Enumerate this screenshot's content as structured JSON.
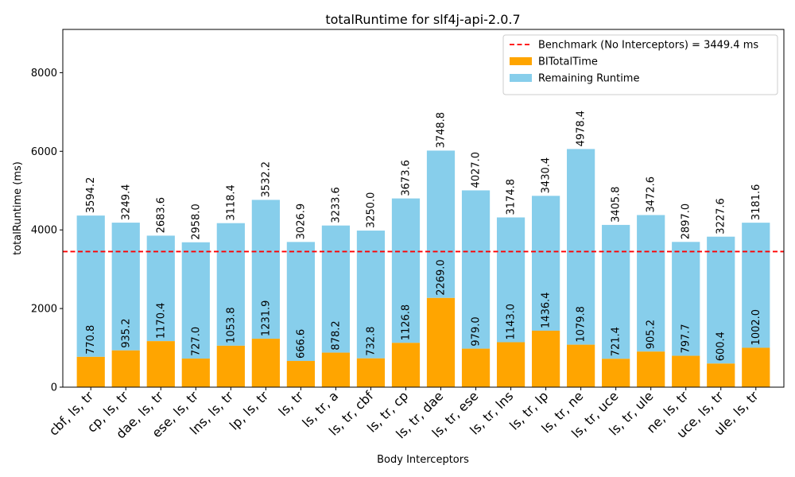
{
  "chart_data": {
    "type": "bar",
    "title": "totalRuntime for slf4j-api-2.0.7",
    "xlabel": "Body Interceptors",
    "ylabel": "totalRuntime (ms)",
    "ylim": [
      0,
      9100
    ],
    "yticks": [
      0,
      2000,
      4000,
      6000,
      8000
    ],
    "yticks_labels": [
      "0",
      "2000",
      "4000",
      "6000",
      "8000"
    ],
    "categories": [
      "cbf, ls, tr",
      "cp, ls, tr",
      "dae, ls, tr",
      "ese, ls, tr",
      "lns, ls, tr",
      "lp, ls, tr",
      "ls, tr",
      "ls, tr, a",
      "ls, tr, cbf",
      "ls, tr, cp",
      "ls, tr, dae",
      "ls, tr, ese",
      "ls, tr, lns",
      "ls, tr, lp",
      "ls, tr, ne",
      "ls, tr, uce",
      "ls, tr, ule",
      "ne, ls, tr",
      "uce, ls, tr",
      "ule, ls, tr"
    ],
    "series": [
      {
        "name": "BITotalTime",
        "color": "#ffa500",
        "values": [
          770.8,
          935.2,
          1170.4,
          727.0,
          1053.8,
          1231.9,
          666.6,
          878.2,
          732.8,
          1126.8,
          2269.0,
          979.0,
          1143.0,
          1436.4,
          1079.8,
          721.4,
          905.2,
          797.7,
          600.4,
          1002.0
        ],
        "value_labels": [
          "770.8",
          "935.2",
          "1170.4",
          "727.0",
          "1053.8",
          "1231.9",
          "666.6",
          "878.2",
          "732.8",
          "1126.8",
          "2269.0",
          "979.0",
          "1143.0",
          "1436.4",
          "1079.8",
          "721.4",
          "905.2",
          "797.7",
          "600.4",
          "1002.0"
        ]
      },
      {
        "name": "Remaining Runtime",
        "color": "#87ceeb",
        "values": [
          3594.2,
          3249.4,
          2683.6,
          2958.0,
          3118.4,
          3532.2,
          3026.9,
          3233.6,
          3250.0,
          3673.6,
          3748.8,
          4027.0,
          3174.8,
          3430.4,
          4978.4,
          3405.8,
          3472.6,
          2897.0,
          3227.6,
          3181.6
        ],
        "value_labels": [
          "3594.2",
          "3249.4",
          "2683.6",
          "2958.0",
          "3118.4",
          "3532.2",
          "3026.9",
          "3233.6",
          "3250.0",
          "3673.6",
          "3748.8",
          "4027.0",
          "3174.8",
          "3430.4",
          "4978.4",
          "3405.8",
          "3472.6",
          "2897.0",
          "3227.6",
          "3181.6"
        ]
      }
    ],
    "benchmark": {
      "label": "Benchmark (No Interceptors) = 3449.4 ms",
      "value": 3449.4,
      "color": "#ff0000",
      "style": "dashed"
    },
    "legend": {
      "placement": "top-right",
      "entries": [
        "Benchmark (No Interceptors) = 3449.4 ms",
        "BITotalTime",
        "Remaining Runtime"
      ]
    },
    "stacked": true,
    "grid": false
  }
}
